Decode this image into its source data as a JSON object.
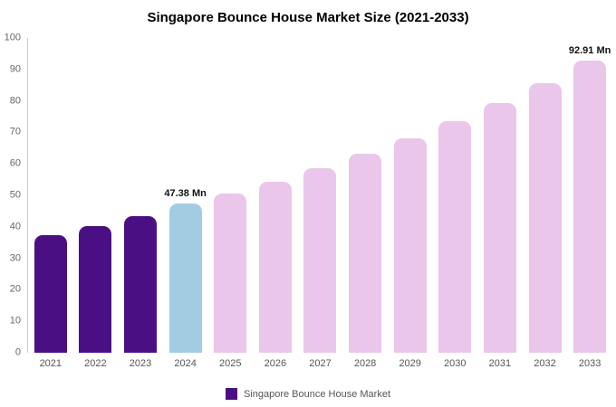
{
  "title": "Singapore Bounce House Market Size (2021-2033)",
  "chart_data": {
    "type": "bar",
    "title": "Singapore Bounce House Market Size (2021-2033)",
    "categories": [
      "2021",
      "2022",
      "2023",
      "2024",
      "2025",
      "2026",
      "2027",
      "2028",
      "2029",
      "2030",
      "2031",
      "2032",
      "2033"
    ],
    "values": [
      37.4,
      40.3,
      43.5,
      47.38,
      50.5,
      54.3,
      58.5,
      63.2,
      68.0,
      73.7,
      79.2,
      85.5,
      92.91
    ],
    "bar_colors": [
      "#4a1083",
      "#4a1083",
      "#4a1083",
      "#a3cce3",
      "#eac6ea",
      "#eac6ea",
      "#eac6ea",
      "#eac6ea",
      "#eac6ea",
      "#eac6ea",
      "#eac6ea",
      "#eac6ea",
      "#eac6ea"
    ],
    "annotations": [
      {
        "category": "2024",
        "label": "47.38 Mn"
      },
      {
        "category": "2033",
        "label": "92.91 Mn"
      }
    ],
    "xlabel": "",
    "ylabel": "",
    "ylim": [
      0,
      100
    ],
    "yticks": [
      0,
      10,
      20,
      30,
      40,
      50,
      60,
      70,
      80,
      90,
      100
    ],
    "grid": false,
    "legend_position": "bottom"
  },
  "legend": {
    "label": "Singapore Bounce House Market",
    "marker_color": "#4a1083"
  },
  "colors": {
    "historical_bar": "#4a1083",
    "current_year_bar": "#a3cce3",
    "forecast_bar": "#eac6ea",
    "background": "#ffffff"
  }
}
